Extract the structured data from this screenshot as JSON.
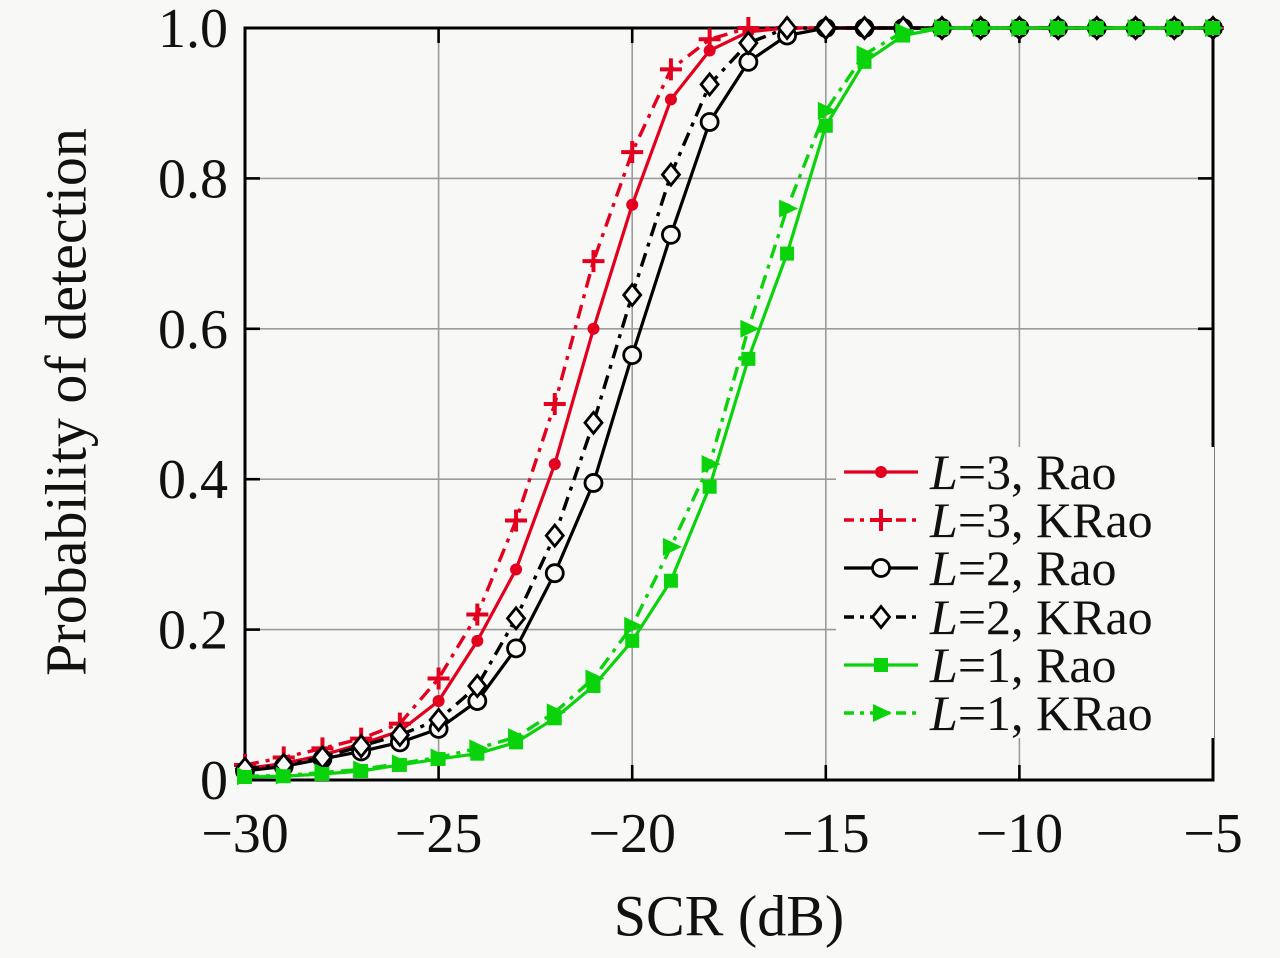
{
  "figure": {
    "background_color": "#f8f8f7",
    "grid_color": "#9b9b9b",
    "axis_color": "#000000",
    "text_color": "#111111"
  },
  "chart_data": {
    "type": "line",
    "title": "",
    "xlabel": "SCR (dB)",
    "ylabel": "Probability of detection",
    "xlim": [
      -30,
      -5
    ],
    "ylim": [
      0,
      1
    ],
    "grid": true,
    "legend_position": "inside lower right",
    "x_ticks": [
      -30,
      -25,
      -20,
      -15,
      -10,
      -5
    ],
    "x_tick_labels": [
      "−30",
      "−25",
      "−20",
      "−15",
      "−10",
      "−5"
    ],
    "y_ticks": [
      0,
      0.2,
      0.4,
      0.6,
      0.8,
      1.0
    ],
    "y_tick_labels": [
      "0",
      "0.2",
      "0.4",
      "0.6",
      "0.8",
      "1.0"
    ],
    "x": [
      -30,
      -29,
      -28,
      -27,
      -26,
      -25,
      -24,
      -23,
      -22,
      -21,
      -20,
      -19,
      -18,
      -17,
      -16,
      -15,
      -14,
      -13,
      -12,
      -11,
      -10,
      -9,
      -8,
      -7,
      -6,
      -5
    ],
    "series": [
      {
        "name": "L=3, Rao",
        "color": "#e2001e",
        "line_style": "solid",
        "marker": "dot",
        "values": [
          0.015,
          0.022,
          0.033,
          0.048,
          0.065,
          0.105,
          0.185,
          0.28,
          0.42,
          0.6,
          0.765,
          0.905,
          0.97,
          0.995,
          1.0,
          1.0,
          1.0,
          1.0,
          1.0,
          1.0,
          1.0,
          1.0,
          1.0,
          1.0,
          1.0,
          1.0
        ]
      },
      {
        "name": "L=3, KRao",
        "color": "#e2001e",
        "line_style": "dash-dot",
        "marker": "plus",
        "values": [
          0.02,
          0.03,
          0.042,
          0.055,
          0.075,
          0.135,
          0.22,
          0.345,
          0.5,
          0.69,
          0.835,
          0.945,
          0.985,
          1.0,
          1.0,
          1.0,
          1.0,
          1.0,
          1.0,
          1.0,
          1.0,
          1.0,
          1.0,
          1.0,
          1.0,
          1.0
        ]
      },
      {
        "name": "L=2, Rao",
        "color": "#000000",
        "line_style": "solid",
        "marker": "circle",
        "values": [
          0.012,
          0.018,
          0.028,
          0.038,
          0.05,
          0.068,
          0.105,
          0.175,
          0.275,
          0.395,
          0.565,
          0.725,
          0.875,
          0.955,
          0.99,
          1.0,
          1.0,
          1.0,
          1.0,
          1.0,
          1.0,
          1.0,
          1.0,
          1.0,
          1.0,
          1.0
        ]
      },
      {
        "name": "L=2, KRao",
        "color": "#000000",
        "line_style": "dash-dot",
        "marker": "diamond",
        "values": [
          0.015,
          0.02,
          0.03,
          0.045,
          0.06,
          0.08,
          0.125,
          0.215,
          0.325,
          0.475,
          0.645,
          0.805,
          0.925,
          0.98,
          1.0,
          1.0,
          1.0,
          1.0,
          1.0,
          1.0,
          1.0,
          1.0,
          1.0,
          1.0,
          1.0,
          1.0
        ]
      },
      {
        "name": "L=1, Rao",
        "color": "#0bd30b",
        "line_style": "solid",
        "marker": "square",
        "values": [
          0.004,
          0.005,
          0.008,
          0.012,
          0.02,
          0.028,
          0.035,
          0.05,
          0.082,
          0.125,
          0.185,
          0.265,
          0.39,
          0.56,
          0.7,
          0.87,
          0.955,
          0.99,
          1.0,
          1.0,
          1.0,
          1.0,
          1.0,
          1.0,
          1.0,
          1.0
        ]
      },
      {
        "name": "L=1, KRao",
        "color": "#0bd30b",
        "line_style": "dash-dot",
        "marker": "triangle-right",
        "values": [
          0.005,
          0.006,
          0.01,
          0.014,
          0.022,
          0.03,
          0.042,
          0.057,
          0.09,
          0.135,
          0.205,
          0.31,
          0.42,
          0.6,
          0.76,
          0.89,
          0.965,
          0.995,
          1.0,
          1.0,
          1.0,
          1.0,
          1.0,
          1.0,
          1.0,
          1.0
        ]
      }
    ]
  }
}
